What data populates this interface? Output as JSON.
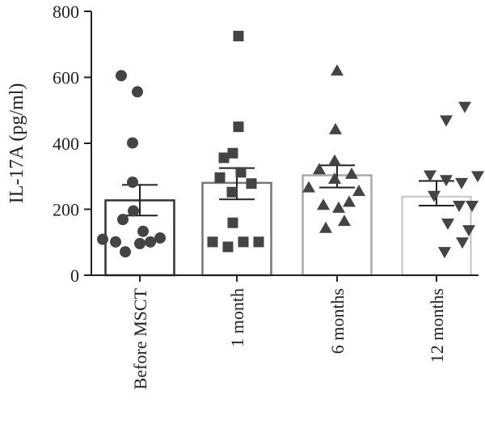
{
  "chart_data": {
    "type": "bar",
    "title": "",
    "xlabel": "",
    "ylabel": "IL-17A (pg/ml)",
    "ylim": [
      0,
      800
    ],
    "yticks": [
      "0",
      "200",
      "400",
      "600",
      "800"
    ],
    "grid": false,
    "categories": [
      "Before MSCT",
      "1 month",
      "6 months",
      "12 months"
    ],
    "bar_colors": [
      "#333333",
      "#777777",
      "#aaaaaa",
      "#cccccc"
    ],
    "marker_color": "#444444",
    "markers": [
      "circle",
      "square",
      "triangle-up",
      "triangle-down"
    ],
    "means": [
      227,
      280,
      303,
      238
    ],
    "sem_upper": [
      274,
      325,
      333,
      286
    ],
    "sem_lower": [
      181,
      230,
      266,
      211
    ],
    "points": [
      [
        605,
        556,
        401,
        282,
        195,
        169,
        133,
        109,
        101,
        96,
        101,
        113,
        71
      ],
      [
        725,
        450,
        370,
        356,
        312,
        296,
        278,
        252,
        159,
        101,
        86,
        101,
        101
      ],
      [
        620,
        442,
        347,
        321,
        307,
        292,
        266,
        255,
        213,
        222,
        204,
        164,
        143
      ],
      [
        511,
        470,
        303,
        289,
        301,
        280,
        241,
        211,
        211,
        157,
        137,
        100,
        71
      ]
    ]
  }
}
